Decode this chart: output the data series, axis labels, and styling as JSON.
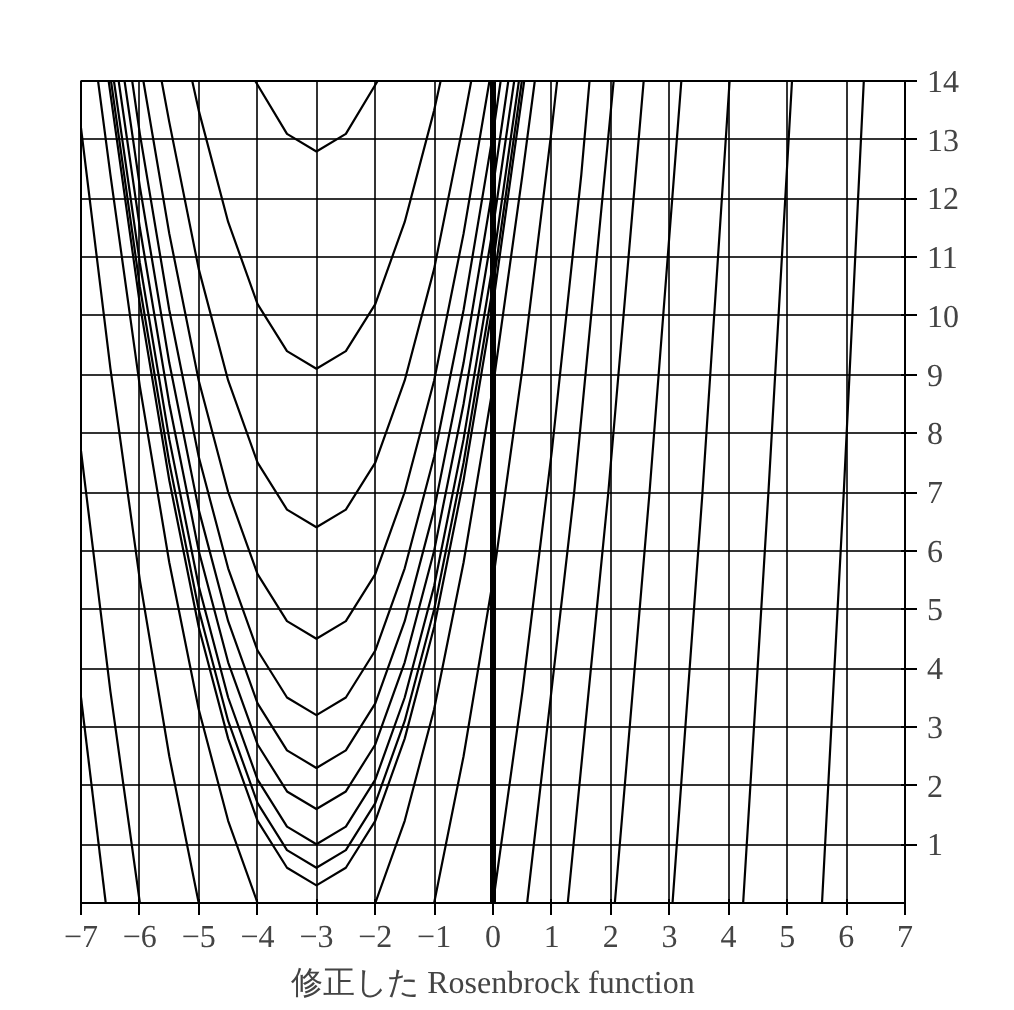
{
  "chart_data": {
    "type": "line",
    "title": "修正した Rosenbrock function",
    "xlim": [
      -7,
      7
    ],
    "ylim": [
      0,
      14
    ],
    "xticks": [
      -7,
      -6,
      -5,
      -4,
      -3,
      -2,
      -1,
      0,
      1,
      2,
      3,
      4,
      5,
      6,
      7
    ],
    "yticks": [
      1,
      2,
      3,
      4,
      5,
      6,
      7,
      8,
      9,
      10,
      11,
      12,
      13,
      14
    ],
    "grid": true,
    "ref_lines": [
      {
        "axis": "x",
        "value": 0
      }
    ],
    "series": [
      {
        "color": "#000000",
        "x": [
          -4.04,
          -3.5,
          -3,
          -2.5,
          -1.96
        ],
        "values": [
          14,
          13.1,
          12.8,
          13.1,
          14
        ]
      },
      {
        "color": "#000000",
        "x": [
          -5.11,
          -5,
          -4.5,
          -4,
          -3.5,
          -3,
          -2.5,
          -2,
          -1.5,
          -1,
          -0.89
        ],
        "values": [
          14,
          13.5,
          11.6,
          10.2,
          9.4,
          9.1,
          9.4,
          10.2,
          11.6,
          13.5,
          14
        ]
      },
      {
        "color": "#000000",
        "x": [
          -5.63,
          -5.5,
          -5,
          -4.5,
          -4,
          -3.5,
          -3,
          -2.5,
          -2,
          -1.5,
          -1,
          -0.5,
          -0.37
        ],
        "values": [
          14,
          13.3,
          10.8,
          8.9,
          7.5,
          6.7,
          6.4,
          6.7,
          7.5,
          8.9,
          10.8,
          13.3,
          14
        ]
      },
      {
        "color": "#000000",
        "x": [
          -5.94,
          -5.5,
          -5,
          -4.5,
          -4,
          -3.5,
          -3,
          -2.5,
          -2,
          -1.5,
          -1,
          -0.5,
          -0.06
        ],
        "values": [
          14,
          11.4,
          8.9,
          7.0,
          5.6,
          4.8,
          4.5,
          4.8,
          5.6,
          7.0,
          8.9,
          11.4,
          14
        ]
      },
      {
        "color": "#000000",
        "x": [
          -6.13,
          -6,
          -5.5,
          -5,
          -4.5,
          -4,
          -3.5,
          -3,
          -2.5,
          -2,
          -1.5,
          -1,
          -0.5,
          0,
          0.13
        ],
        "values": [
          14,
          13.1,
          10.1,
          7.6,
          5.7,
          4.3,
          3.5,
          3.2,
          3.5,
          4.3,
          5.7,
          7.6,
          10.1,
          13.1,
          14
        ]
      },
      {
        "color": "#000000",
        "x": [
          -6.26,
          -6,
          -5.5,
          -5,
          -4.5,
          -4,
          -3.5,
          -3,
          -2.5,
          -2,
          -1.5,
          -1,
          -0.5,
          0,
          0.26
        ],
        "values": [
          14,
          12.2,
          9.2,
          6.7,
          4.8,
          3.4,
          2.6,
          2.3,
          2.6,
          3.4,
          4.8,
          6.7,
          9.2,
          12.2,
          14
        ]
      },
      {
        "color": "#000000",
        "x": [
          -6.36,
          -6,
          -5.5,
          -5,
          -4.5,
          -4,
          -3.5,
          -3,
          -2.5,
          -2,
          -1.5,
          -1,
          -0.5,
          0,
          0.36
        ],
        "values": [
          14,
          11.5,
          8.5,
          6.0,
          4.1,
          2.7,
          1.9,
          1.6,
          1.9,
          2.7,
          4.1,
          6.0,
          8.5,
          11.5,
          14
        ]
      },
      {
        "color": "#000000",
        "x": [
          -6.44,
          -6,
          -5.5,
          -5,
          -4.5,
          -4,
          -3.5,
          -3,
          -2.5,
          -2,
          -1.5,
          -1,
          -0.5,
          0,
          0.44
        ],
        "values": [
          14,
          10.9,
          7.9,
          5.4,
          3.5,
          2.1,
          1.3,
          1.0,
          1.3,
          2.1,
          3.5,
          5.4,
          7.9,
          10.9,
          14
        ]
      },
      {
        "color": "#000000",
        "x": [
          -6.49,
          -6,
          -5.5,
          -5,
          -4.5,
          -4,
          -3.5,
          -3,
          -2.5,
          -2,
          -1.5,
          -1,
          -0.5,
          0,
          0.49
        ],
        "values": [
          14,
          10.5,
          7.5,
          5.0,
          3.1,
          1.7,
          0.9,
          0.6,
          0.9,
          1.7,
          3.1,
          5.0,
          7.5,
          10.5,
          14
        ]
      },
      {
        "color": "#000000",
        "x": [
          -6.53,
          -6,
          -5.5,
          -5,
          -4.5,
          -4,
          -3.5,
          -3,
          -2.5,
          -2,
          -1.5,
          -1,
          -0.5,
          0,
          0.53
        ],
        "values": [
          14,
          10.2,
          7.2,
          4.7,
          2.8,
          1.4,
          0.6,
          0.3,
          0.6,
          1.4,
          2.8,
          4.7,
          7.2,
          10.2,
          14
        ]
      },
      {
        "color": "#000000",
        "x": [
          -6.71,
          -6.5,
          -6,
          -5.5,
          -5,
          -4.5,
          -4
        ],
        "values": [
          14,
          12.4,
          8.8,
          5.8,
          3.3,
          1.4,
          0
        ]
      },
      {
        "color": "#000000",
        "x": [
          -2,
          -1.5,
          -1,
          -0.5,
          0,
          0.5,
          0.71
        ],
        "values": [
          0,
          1.4,
          3.3,
          5.8,
          8.8,
          12.4,
          14
        ]
      },
      {
        "color": "#000000",
        "x": [
          -7,
          -6.5,
          -6,
          -5.5,
          -5
        ],
        "values": [
          13.2,
          9.1,
          5.5,
          2.5,
          0
        ]
      },
      {
        "color": "#000000",
        "x": [
          -1,
          -0.5,
          0,
          0.5,
          1,
          1.09
        ],
        "values": [
          0,
          2.5,
          5.5,
          9.1,
          13.2,
          14
        ]
      },
      {
        "color": "#000000",
        "x": [
          -7,
          -6.5,
          -6
        ],
        "values": [
          7.7,
          3.6,
          0
        ]
      },
      {
        "color": "#000000",
        "x": [
          0,
          0.5,
          1,
          1.5,
          1.64
        ],
        "values": [
          0,
          3.6,
          7.7,
          12.4,
          14
        ]
      },
      {
        "color": "#000000",
        "x": [
          -7,
          -6.58
        ],
        "values": [
          3.5,
          0
        ]
      },
      {
        "color": "#000000",
        "x": [
          0.58,
          1.38,
          2.05
        ],
        "values": [
          0,
          7,
          14
        ]
      },
      {
        "color": "#000000",
        "x": [
          1.27,
          1.96,
          2.56
        ],
        "values": [
          0,
          7,
          14
        ]
      },
      {
        "color": "#000000",
        "x": [
          2.07,
          2.66,
          3.2
        ],
        "values": [
          0,
          7,
          14
        ]
      },
      {
        "color": "#000000",
        "x": [
          3.05,
          3.56,
          4.02
        ],
        "values": [
          0,
          7,
          14
        ]
      },
      {
        "color": "#000000",
        "x": [
          4.25,
          4.68,
          5.08
        ],
        "values": [
          0,
          7,
          14
        ]
      },
      {
        "color": "#000000",
        "x": [
          5.59,
          5.96,
          6.3
        ],
        "values": [
          0,
          7,
          14
        ]
      }
    ]
  }
}
